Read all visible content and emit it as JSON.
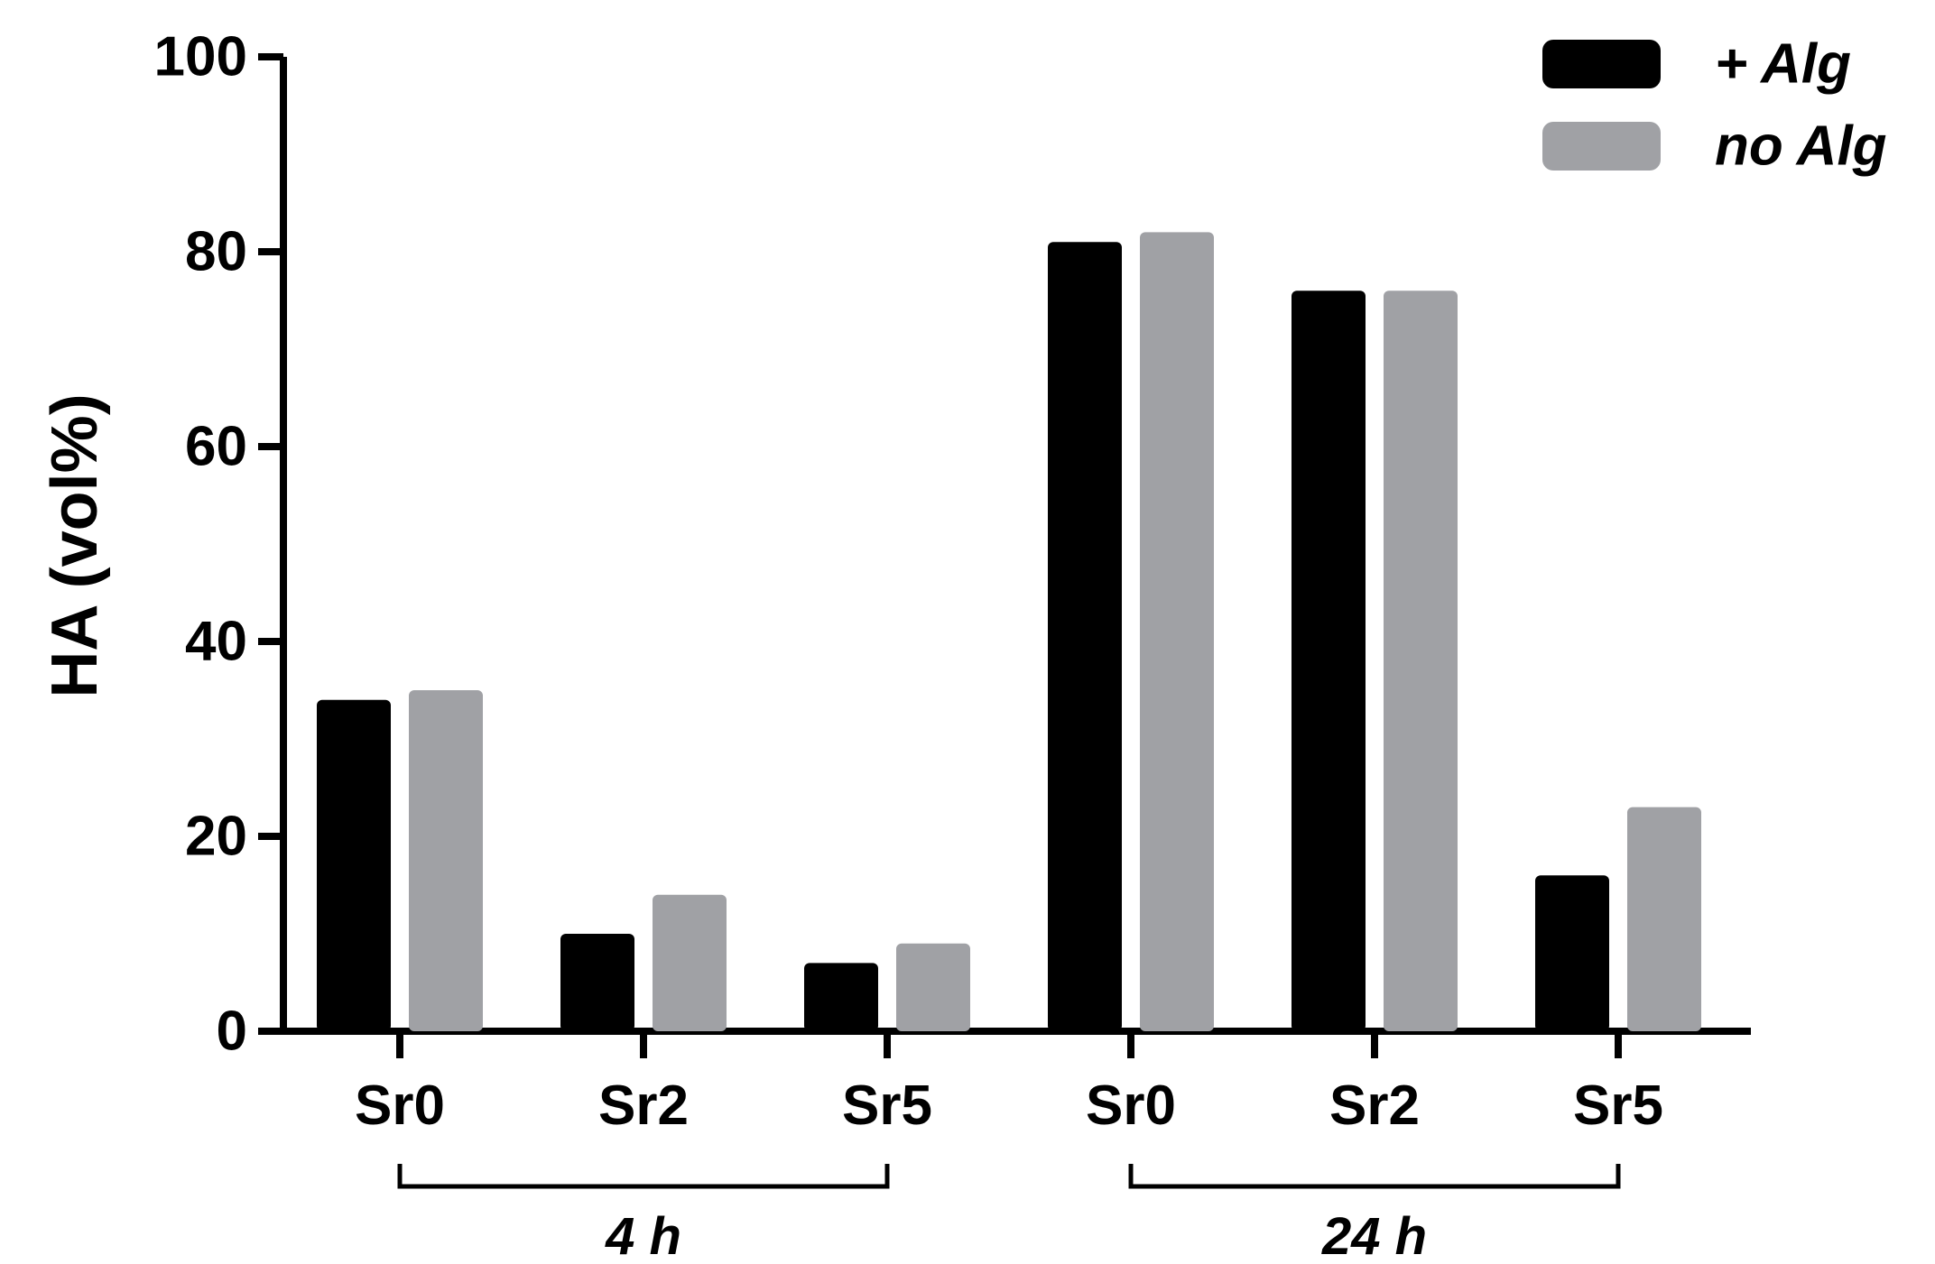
{
  "chart_data": {
    "type": "bar",
    "ylabel": "HA (vol%)",
    "xlabel": "",
    "ylim": [
      0,
      100
    ],
    "yticks": [
      0,
      20,
      40,
      60,
      80,
      100
    ],
    "categories": [
      "Sr0",
      "Sr2",
      "Sr5",
      "Sr0",
      "Sr2",
      "Sr5"
    ],
    "groups": [
      {
        "label": "4 h",
        "start": 0,
        "end": 2
      },
      {
        "label": "24 h",
        "start": 3,
        "end": 5
      }
    ],
    "series": [
      {
        "name": "+ Alg",
        "color": "#000000",
        "values": [
          34,
          10,
          7,
          81,
          76,
          16
        ]
      },
      {
        "name": "no Alg",
        "color": "#a0a1a5",
        "values": [
          35,
          14,
          9,
          82,
          76,
          23
        ]
      }
    ],
    "legend_position": "top-right",
    "grid": false
  }
}
